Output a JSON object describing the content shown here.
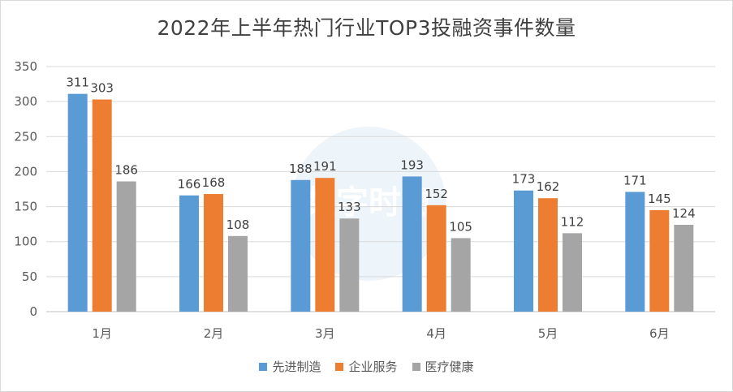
{
  "chart_data": {
    "type": "bar",
    "title": "2022年上半年热门行业TOP3投融资事件数量",
    "categories": [
      "1月",
      "2月",
      "3月",
      "4月",
      "5月",
      "6月"
    ],
    "series": [
      {
        "name": "先进制造",
        "color": "#5b9bd5",
        "values": [
          311,
          166,
          188,
          193,
          173,
          171
        ]
      },
      {
        "name": "企业服务",
        "color": "#ed7d31",
        "values": [
          303,
          168,
          191,
          152,
          162,
          145
        ]
      },
      {
        "name": "医疗健康",
        "color": "#a5a5a5",
        "values": [
          186,
          108,
          133,
          105,
          112,
          124
        ]
      }
    ],
    "ylim": [
      0,
      350
    ],
    "yticks": [
      0,
      50,
      100,
      150,
      200,
      250,
      300,
      350
    ],
    "grid": true,
    "legend_position": "bottom",
    "watermark_text": "数字时氪"
  }
}
